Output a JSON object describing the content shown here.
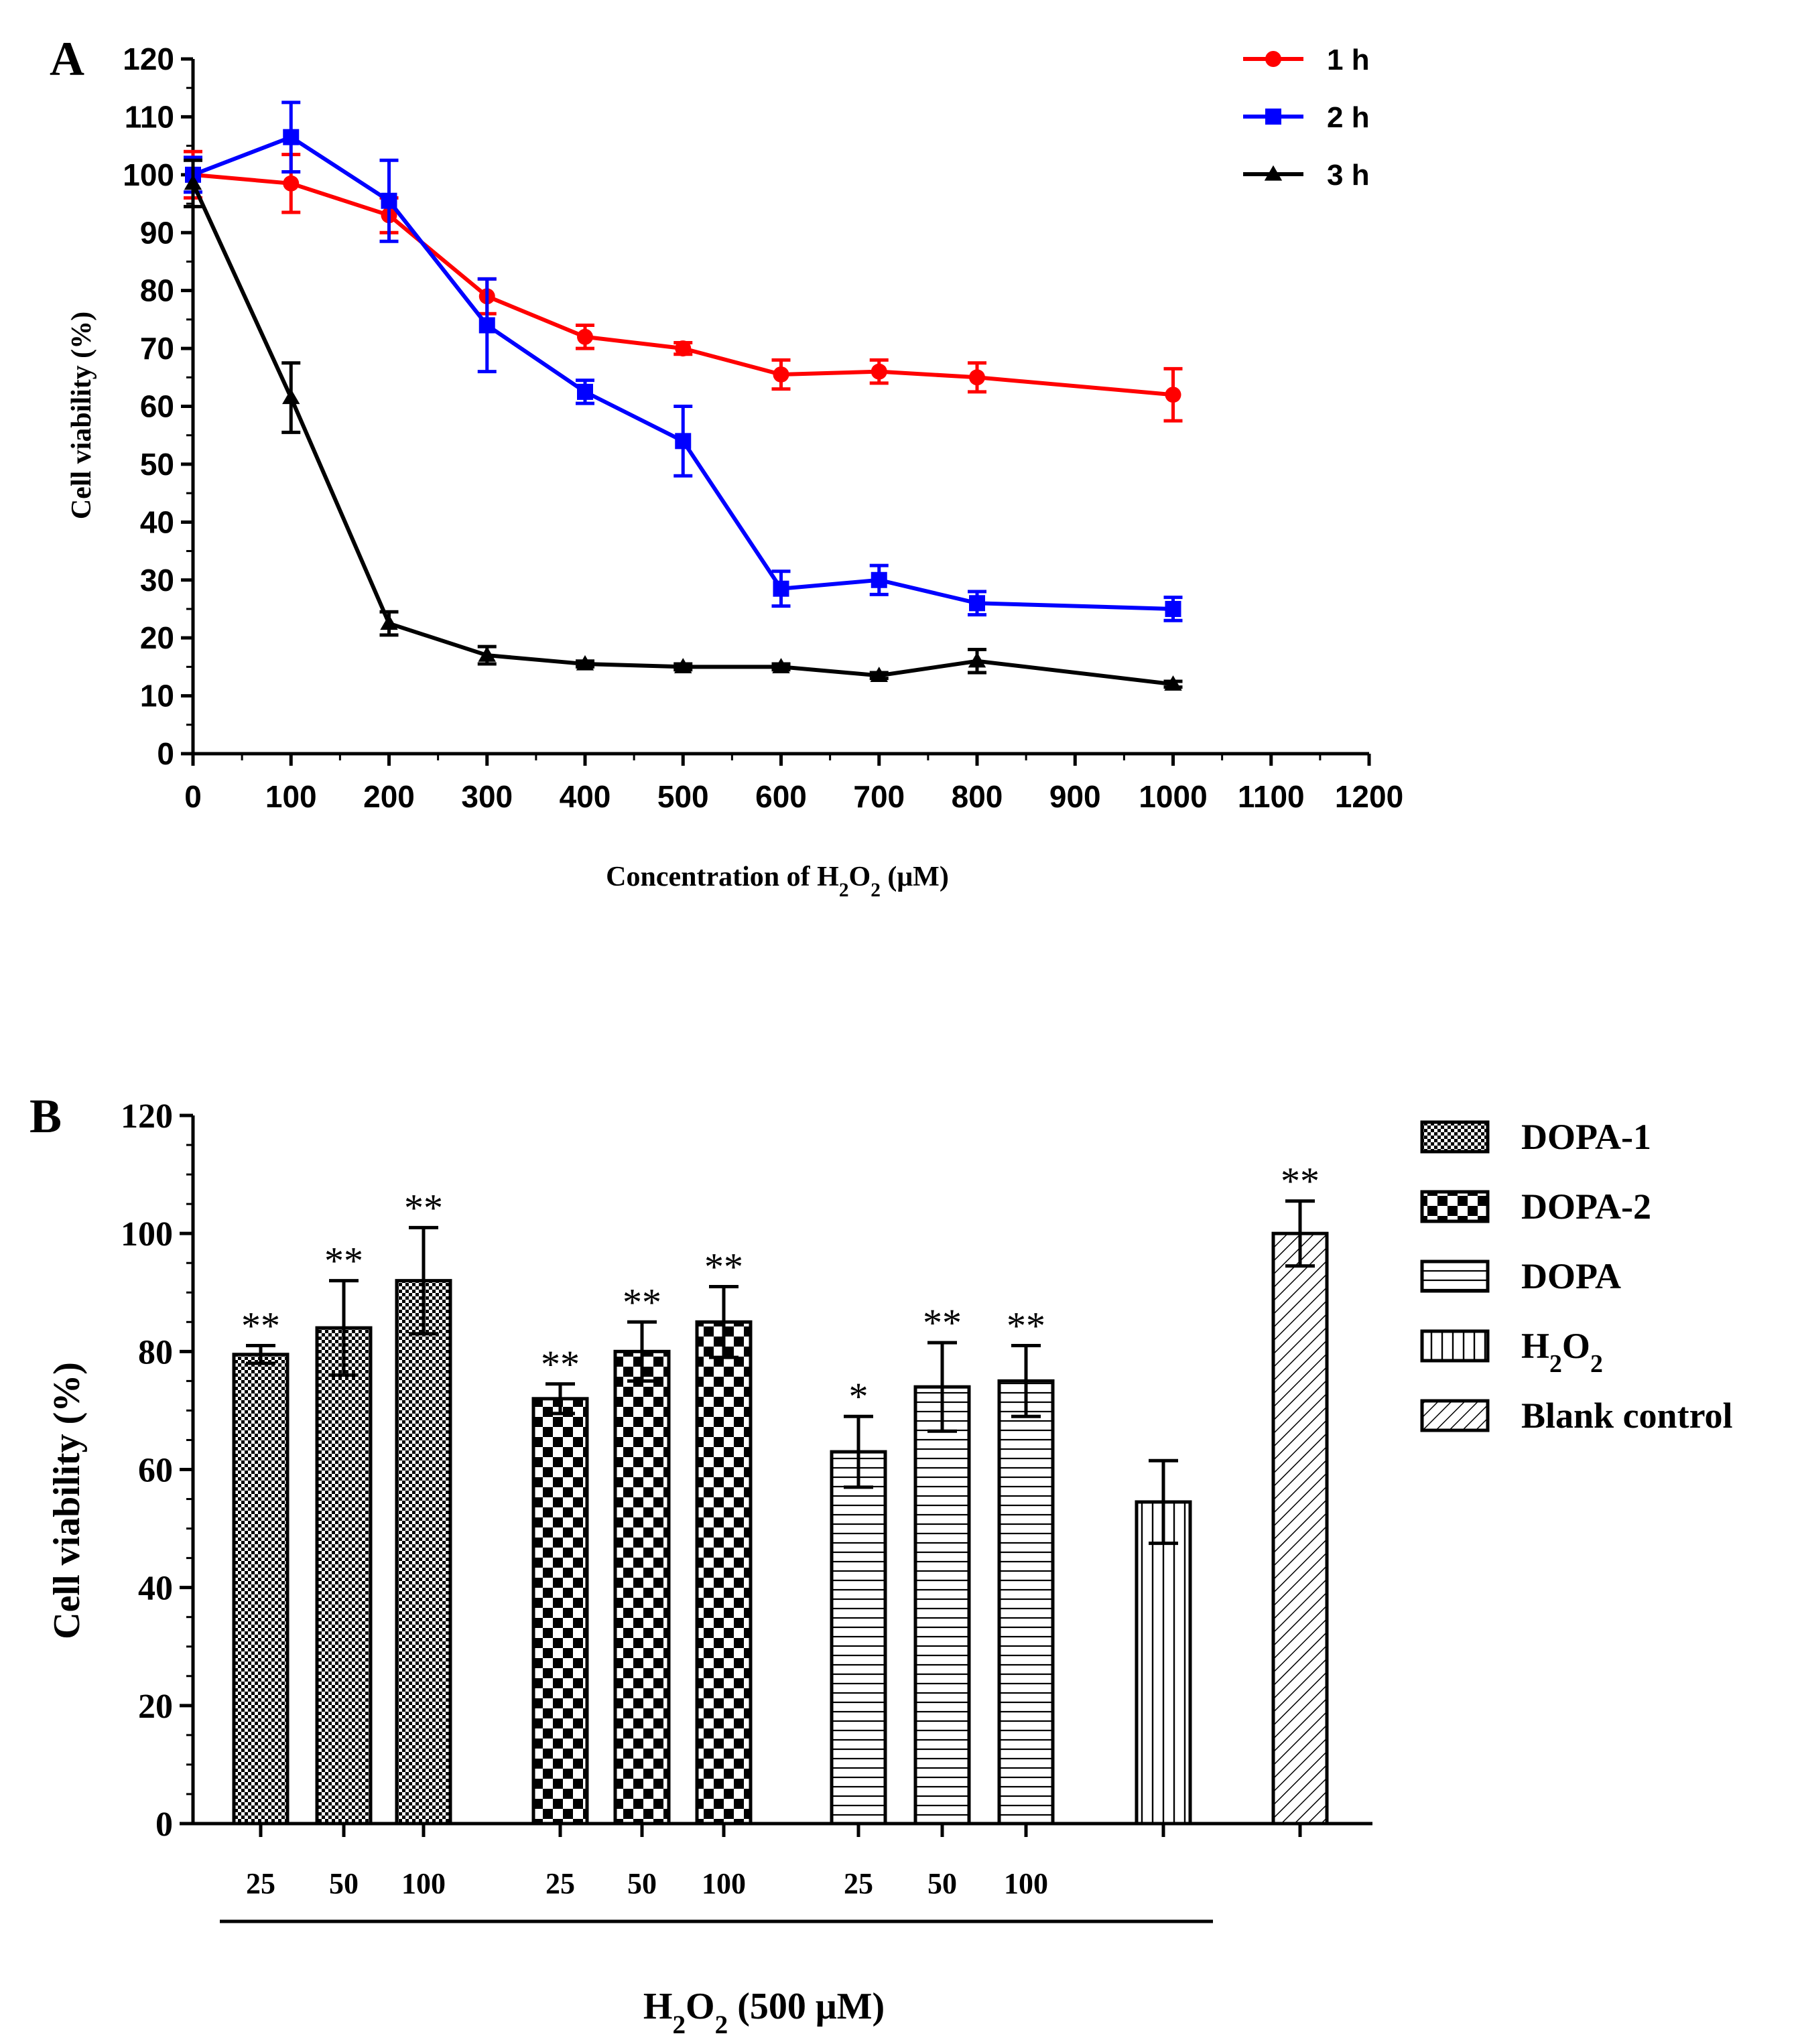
{
  "chart_data": [
    {
      "panel": "A",
      "type": "line",
      "xlabel": "Concentration of H",
      "xlabel_sub_a": "2",
      "xlabel_mid": "O",
      "xlabel_sub_b": "2",
      "xlabel_tail": " (μM)",
      "ylabel": "Cell viability (%)",
      "xlim": [
        0,
        1200
      ],
      "ylim": [
        0,
        120
      ],
      "xticks": [
        0,
        100,
        200,
        300,
        400,
        500,
        600,
        700,
        800,
        900,
        1000,
        1100,
        1200
      ],
      "yticks": [
        0,
        10,
        20,
        30,
        40,
        50,
        60,
        70,
        80,
        90,
        100,
        110,
        120
      ],
      "legend_position": "top-right",
      "series": [
        {
          "name": "1 h",
          "color": "#ff0000",
          "marker": "circle",
          "x": [
            0,
            100,
            200,
            300,
            400,
            500,
            600,
            700,
            800,
            1000
          ],
          "y": [
            100,
            98.5,
            93,
            79,
            72,
            70,
            65.5,
            66,
            65,
            62
          ],
          "err": [
            4,
            5,
            3,
            3,
            2,
            1,
            2.5,
            2,
            2.5,
            4.5
          ]
        },
        {
          "name": "2 h",
          "color": "#0000ff",
          "marker": "square",
          "x": [
            0,
            100,
            200,
            300,
            400,
            500,
            600,
            700,
            800,
            1000
          ],
          "y": [
            100,
            106.5,
            95.5,
            74,
            62.5,
            54,
            28.5,
            30,
            26,
            25
          ],
          "err": [
            3,
            6,
            7,
            8,
            2,
            6,
            3,
            2.5,
            2,
            2
          ]
        },
        {
          "name": "3 h",
          "color": "#000000",
          "marker": "triangle",
          "x": [
            0,
            100,
            200,
            300,
            400,
            500,
            600,
            700,
            800,
            1000
          ],
          "y": [
            98.5,
            61.5,
            22.5,
            17,
            15.5,
            15,
            15,
            13.5,
            16,
            12
          ],
          "err": [
            4,
            6,
            2,
            1.5,
            0.5,
            0.5,
            0.5,
            0.5,
            2,
            0.5
          ]
        }
      ]
    },
    {
      "panel": "B",
      "type": "bar",
      "ylabel": "Cell viability (%)",
      "ylim": [
        0,
        120
      ],
      "yticks": [
        0,
        20,
        40,
        60,
        80,
        100,
        120
      ],
      "xlabel": "H",
      "xlabel_sub_a": "2",
      "xlabel_mid": "O",
      "xlabel_sub_b": "2",
      "xlabel_tail": " (500 μM)",
      "legend_position": "top-right",
      "legend": [
        {
          "name": "DOPA-1",
          "pattern": "dots"
        },
        {
          "name": "DOPA-2",
          "pattern": "checker"
        },
        {
          "name": "DOPA",
          "pattern": "hlines"
        },
        {
          "name": "H",
          "sub": "2",
          "mid": "O",
          "sub2": "2",
          "pattern": "vlines"
        },
        {
          "name": "Blank control",
          "pattern": "diag"
        }
      ],
      "bars": [
        {
          "group": "DOPA-1",
          "label": "25",
          "value": 79.5,
          "err": 1.5,
          "sig": "**"
        },
        {
          "group": "DOPA-1",
          "label": "50",
          "value": 84,
          "err": 8,
          "sig": "**"
        },
        {
          "group": "DOPA-1",
          "label": "100",
          "value": 92,
          "err": 9,
          "sig": "**"
        },
        {
          "group": "DOPA-2",
          "label": "25",
          "value": 72,
          "err": 2.5,
          "sig": "**"
        },
        {
          "group": "DOPA-2",
          "label": "50",
          "value": 80,
          "err": 5,
          "sig": "**"
        },
        {
          "group": "DOPA-2",
          "label": "100",
          "value": 85,
          "err": 6,
          "sig": "**"
        },
        {
          "group": "DOPA",
          "label": "25",
          "value": 63,
          "err": 6,
          "sig": "*"
        },
        {
          "group": "DOPA",
          "label": "50",
          "value": 74,
          "err": 7.5,
          "sig": "**"
        },
        {
          "group": "DOPA",
          "label": "100",
          "value": 75,
          "err": 6,
          "sig": "**"
        },
        {
          "group": "H2O2",
          "label": "",
          "value": 54.5,
          "err": 7,
          "sig": ""
        },
        {
          "group": "Blank control",
          "label": "",
          "value": 100,
          "err": 5.5,
          "sig": "**"
        }
      ]
    }
  ]
}
